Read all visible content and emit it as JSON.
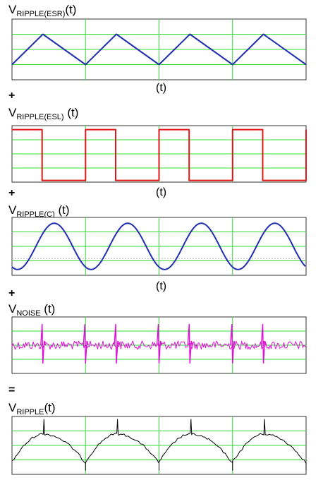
{
  "panels": [
    {
      "label_main": "V",
      "label_sub": "RIPPLE(ESR)",
      "label_tail": "(t)",
      "time_label": "(t)",
      "operator_after": "+",
      "waveform": "triangle",
      "color": "#1f2fb0"
    },
    {
      "label_main": "V",
      "label_sub": "RIPPLE(ESL)",
      "label_tail": " (t)",
      "time_label": "(t)",
      "operator_after": "+",
      "waveform": "square",
      "color": "#e01818"
    },
    {
      "label_main": "V",
      "label_sub": "RIPPLE(C)",
      "label_tail": " (t)",
      "time_label": "(t)",
      "operator_after": "+",
      "waveform": "sine",
      "color": "#1f2fb0"
    },
    {
      "label_main": "V",
      "label_sub": "NOISE",
      "label_tail": " (t)",
      "time_label": "",
      "operator_after": "=",
      "waveform": "noise",
      "color": "#e010d8"
    },
    {
      "label_main": "V",
      "label_sub": "RIPPLE",
      "label_tail": "(t)",
      "time_label": "",
      "operator_after": "",
      "waveform": "sum",
      "color": "#000000"
    }
  ],
  "grid_color": "#33dd33",
  "chart_data": [
    {
      "type": "line",
      "series": [
        {
          "shape": "triangle",
          "cycles": 4
        }
      ],
      "xlabel": "(t)",
      "grid": true
    },
    {
      "type": "line",
      "series": [
        {
          "shape": "square",
          "cycles": 4
        }
      ],
      "xlabel": "(t)",
      "grid": true
    },
    {
      "type": "line",
      "series": [
        {
          "shape": "sine",
          "cycles": 4
        }
      ],
      "xlabel": "(t)",
      "grid": true
    },
    {
      "type": "line",
      "series": [
        {
          "shape": "noise with switching spikes",
          "cycles": 4
        }
      ],
      "grid": true
    },
    {
      "type": "line",
      "series": [
        {
          "shape": "sum of components",
          "cycles": 4
        }
      ],
      "grid": true
    }
  ]
}
